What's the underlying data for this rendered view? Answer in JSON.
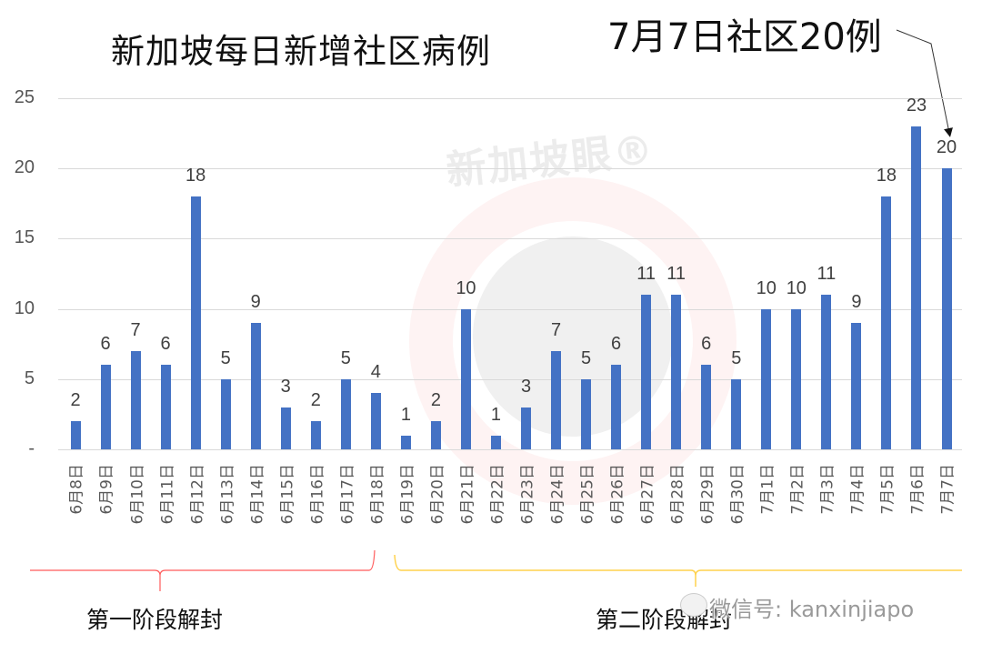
{
  "chart_data": {
    "type": "bar",
    "title": "新加坡每日新增社区病例",
    "xlabel": "",
    "ylabel": "",
    "ylim": [
      0,
      25
    ],
    "yticks": [
      "-",
      "5",
      "10",
      "15",
      "20",
      "25"
    ],
    "grid": true,
    "legend": null,
    "bar_color": "#4472c4",
    "categories": [
      "6月8日",
      "6月9日",
      "6月10日",
      "6月11日",
      "6月12日",
      "6月13日",
      "6月14日",
      "6月15日",
      "6月16日",
      "6月17日",
      "6月18日",
      "6月19日",
      "6月20日",
      "6月21日",
      "6月22日",
      "6月23日",
      "6月24日",
      "6月25日",
      "6月26日",
      "6月27日",
      "6月28日",
      "6月29日",
      "6月30日",
      "7月1日",
      "7月2日",
      "7月3日",
      "7月4日",
      "7月5日",
      "7月6日",
      "7月7日"
    ],
    "values": [
      2,
      6,
      7,
      6,
      18,
      5,
      9,
      3,
      2,
      5,
      4,
      1,
      2,
      10,
      1,
      3,
      7,
      5,
      6,
      11,
      11,
      6,
      5,
      10,
      10,
      11,
      9,
      18,
      23,
      20
    ],
    "annotations": [
      {
        "text": "7月7日社区20例",
        "points_to": "7月7日"
      },
      {
        "text": "第一阶段解封",
        "range": [
          "6月8日",
          "6月18日"
        ],
        "bracket_color": "#ff4d4d"
      },
      {
        "text": "第二阶段解封",
        "range": [
          "6月19日",
          "7月7日"
        ],
        "bracket_color": "#ffd24d"
      }
    ]
  },
  "header": {
    "title": "新加坡每日新增社区病例",
    "callout": "7月7日社区20例"
  },
  "phases": {
    "phase1": "第一阶段解封",
    "phase2": "第二阶段解封"
  },
  "watermark": {
    "brand": "新加坡眼®",
    "wechat": "微信号: kanxinjiapo"
  }
}
